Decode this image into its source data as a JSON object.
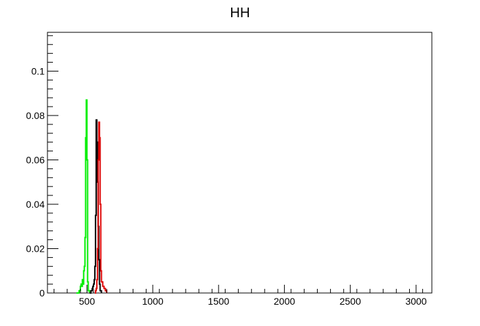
{
  "chart_data": {
    "type": "line",
    "title": "HH",
    "xlabel": "",
    "ylabel": "",
    "xlim": [
      200,
      3120
    ],
    "ylim": [
      0,
      0.1175
    ],
    "x_ticks": [
      500,
      1000,
      1500,
      2000,
      2500,
      3000
    ],
    "x_tick_labels": [
      "500",
      "1000",
      "1500",
      "2000",
      "2500",
      "3000"
    ],
    "y_ticks": [
      0,
      0.02,
      0.04,
      0.06,
      0.08,
      0.1
    ],
    "y_tick_labels": [
      "0",
      "0.02",
      "0.04",
      "0.06",
      "0.08",
      "0.1"
    ],
    "grid": false,
    "series": [
      {
        "color": "#00ee00",
        "x": [
          420,
          440,
          450,
          455,
          460,
          465,
          470,
          475,
          480,
          485,
          490,
          495,
          500,
          505,
          510,
          520
        ],
        "y": [
          0,
          0.001,
          0.003,
          0.004,
          0.003,
          0.006,
          0.004,
          0.01,
          0.012,
          0.025,
          0.07,
          0.087,
          0.06,
          0.005,
          0.001,
          0
        ]
      },
      {
        "color": "#000000",
        "x": [
          520,
          530,
          540,
          545,
          550,
          555,
          560,
          565,
          570,
          575,
          580,
          585,
          590,
          595,
          600,
          610
        ],
        "y": [
          0,
          0.001,
          0.002,
          0.003,
          0.004,
          0.006,
          0.012,
          0.035,
          0.078,
          0.068,
          0.05,
          0.03,
          0.015,
          0.004,
          0.001,
          0
        ]
      },
      {
        "color": "#dd0000",
        "x": [
          560,
          565,
          570,
          575,
          580,
          585,
          590,
          595,
          600,
          605,
          610,
          620,
          630,
          640,
          650
        ],
        "y": [
          0,
          0.001,
          0.002,
          0.006,
          0.02,
          0.06,
          0.077,
          0.07,
          0.04,
          0.01,
          0.005,
          0.003,
          0.002,
          0.001,
          0
        ]
      }
    ]
  }
}
